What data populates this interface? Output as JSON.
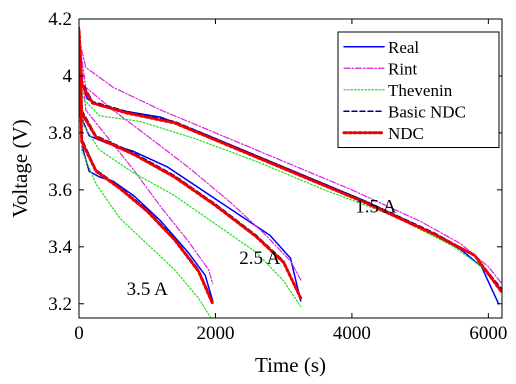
{
  "chart_data": {
    "type": "line",
    "title": "",
    "xlabel": "Time (s)",
    "ylabel": "Voltage (V)",
    "xlim": [
      0,
      6200
    ],
    "ylim": [
      3.15,
      4.2
    ],
    "xticks": [
      0,
      2000,
      4000,
      6000
    ],
    "xtick_labels": [
      "0",
      "2000",
      "4000",
      "6000"
    ],
    "yticks": [
      3.2,
      3.4,
      3.6,
      3.8,
      4.0,
      4.2
    ],
    "ytick_labels": [
      "3.2",
      "3.4",
      "3.6",
      "3.8",
      "4",
      "4.2"
    ],
    "grid": false,
    "legend_position": "top-right",
    "annotations": [
      {
        "text": "1.5 A",
        "x": 4350,
        "y": 3.52
      },
      {
        "text": "2.5 A",
        "x": 2650,
        "y": 3.34
      },
      {
        "text": "3.5 A",
        "x": 1000,
        "y": 3.23
      }
    ],
    "series": [
      {
        "name": "Real",
        "color": "#0000ff",
        "dash": "solid",
        "groups": [
          {
            "current": "1.5 A",
            "points": [
              [
                0,
                4.17
              ],
              [
                20,
                4.02
              ],
              [
                60,
                3.96
              ],
              [
                120,
                3.92
              ],
              [
                300,
                3.895
              ],
              [
                700,
                3.875
              ],
              [
                1200,
                3.855
              ],
              [
                1800,
                3.8
              ],
              [
                2600,
                3.72
              ],
              [
                3400,
                3.64
              ],
              [
                4200,
                3.56
              ],
              [
                5000,
                3.47
              ],
              [
                5600,
                3.39
              ],
              [
                5900,
                3.33
              ],
              [
                6150,
                3.2
              ]
            ]
          },
          {
            "current": "2.5 A",
            "points": [
              [
                0,
                4.17
              ],
              [
                20,
                3.93
              ],
              [
                60,
                3.84
              ],
              [
                150,
                3.79
              ],
              [
                400,
                3.765
              ],
              [
                800,
                3.735
              ],
              [
                1300,
                3.68
              ],
              [
                1800,
                3.6
              ],
              [
                2300,
                3.52
              ],
              [
                2800,
                3.44
              ],
              [
                3100,
                3.36
              ],
              [
                3250,
                3.21
              ]
            ]
          },
          {
            "current": "3.5 A",
            "points": [
              [
                0,
                4.17
              ],
              [
                20,
                3.86
              ],
              [
                60,
                3.74
              ],
              [
                150,
                3.665
              ],
              [
                300,
                3.645
              ],
              [
                500,
                3.63
              ],
              [
                800,
                3.58
              ],
              [
                1200,
                3.49
              ],
              [
                1600,
                3.38
              ],
              [
                1850,
                3.3
              ],
              [
                1960,
                3.21
              ]
            ]
          }
        ]
      },
      {
        "name": "Rint",
        "color": "#dd22dd",
        "dash": "dashdot",
        "groups": [
          {
            "current": "1.5 A",
            "points": [
              [
                0,
                4.13
              ],
              [
                100,
                4.03
              ],
              [
                500,
                3.96
              ],
              [
                1200,
                3.88
              ],
              [
                2000,
                3.8
              ],
              [
                3000,
                3.7
              ],
              [
                4000,
                3.6
              ],
              [
                5000,
                3.49
              ],
              [
                5600,
                3.41
              ],
              [
                6000,
                3.33
              ],
              [
                6200,
                3.27
              ]
            ]
          },
          {
            "current": "2.5 A",
            "points": [
              [
                0,
                4.13
              ],
              [
                100,
                3.96
              ],
              [
                500,
                3.88
              ],
              [
                1000,
                3.79
              ],
              [
                1600,
                3.68
              ],
              [
                2200,
                3.56
              ],
              [
                2700,
                3.45
              ],
              [
                3100,
                3.35
              ],
              [
                3260,
                3.28
              ]
            ]
          },
          {
            "current": "3.5 A",
            "points": [
              [
                0,
                4.13
              ],
              [
                100,
                3.88
              ],
              [
                400,
                3.79
              ],
              [
                800,
                3.67
              ],
              [
                1200,
                3.54
              ],
              [
                1600,
                3.42
              ],
              [
                1900,
                3.32
              ],
              [
                1960,
                3.27
              ]
            ]
          }
        ]
      },
      {
        "name": "Thevenin",
        "color": "#22dd22",
        "dash": "dotted",
        "groups": [
          {
            "current": "1.5 A",
            "points": [
              [
                0,
                4.16
              ],
              [
                60,
                3.92
              ],
              [
                300,
                3.86
              ],
              [
                900,
                3.84
              ],
              [
                1700,
                3.78
              ],
              [
                2600,
                3.7
              ],
              [
                3600,
                3.6
              ],
              [
                4600,
                3.51
              ],
              [
                5500,
                3.4
              ],
              [
                5900,
                3.33
              ],
              [
                6200,
                3.24
              ]
            ]
          },
          {
            "current": "2.5 A",
            "points": [
              [
                0,
                4.16
              ],
              [
                60,
                3.83
              ],
              [
                300,
                3.74
              ],
              [
                800,
                3.66
              ],
              [
                1400,
                3.58
              ],
              [
                2000,
                3.48
              ],
              [
                2600,
                3.38
              ],
              [
                3000,
                3.28
              ],
              [
                3250,
                3.19
              ]
            ]
          },
          {
            "current": "3.5 A",
            "points": [
              [
                0,
                4.16
              ],
              [
                40,
                3.74
              ],
              [
                250,
                3.62
              ],
              [
                600,
                3.5
              ],
              [
                1000,
                3.41
              ],
              [
                1400,
                3.32
              ],
              [
                1750,
                3.22
              ],
              [
                1960,
                3.14
              ]
            ]
          }
        ]
      },
      {
        "name": "Basic NDC",
        "color": "#000080",
        "dash": "dashed",
        "groups": [
          {
            "current": "1.5 A",
            "points": [
              [
                0,
                4.16
              ],
              [
                40,
                3.98
              ],
              [
                200,
                3.91
              ],
              [
                700,
                3.875
              ],
              [
                1400,
                3.84
              ],
              [
                2200,
                3.76
              ],
              [
                3200,
                3.66
              ],
              [
                4200,
                3.56
              ],
              [
                5200,
                3.45
              ],
              [
                5800,
                3.37
              ],
              [
                6200,
                3.25
              ]
            ]
          },
          {
            "current": "2.5 A",
            "points": [
              [
                0,
                4.16
              ],
              [
                40,
                3.88
              ],
              [
                250,
                3.79
              ],
              [
                800,
                3.73
              ],
              [
                1400,
                3.65
              ],
              [
                2000,
                3.55
              ],
              [
                2600,
                3.44
              ],
              [
                3000,
                3.35
              ],
              [
                3250,
                3.22
              ]
            ]
          },
          {
            "current": "3.5 A",
            "points": [
              [
                0,
                4.16
              ],
              [
                40,
                3.78
              ],
              [
                250,
                3.67
              ],
              [
                600,
                3.61
              ],
              [
                1000,
                3.53
              ],
              [
                1400,
                3.43
              ],
              [
                1750,
                3.32
              ],
              [
                1960,
                3.21
              ]
            ]
          }
        ]
      },
      {
        "name": "NDC",
        "color": "#ee0000",
        "dash": "dotted-thick",
        "groups": [
          {
            "current": "1.5 A",
            "points": [
              [
                0,
                4.16
              ],
              [
                40,
                3.97
              ],
              [
                200,
                3.905
              ],
              [
                700,
                3.87
              ],
              [
                1400,
                3.835
              ],
              [
                2200,
                3.755
              ],
              [
                3200,
                3.655
              ],
              [
                4200,
                3.555
              ],
              [
                5200,
                3.445
              ],
              [
                5800,
                3.37
              ],
              [
                6200,
                3.24
              ]
            ]
          },
          {
            "current": "2.5 A",
            "points": [
              [
                0,
                4.16
              ],
              [
                40,
                3.87
              ],
              [
                250,
                3.785
              ],
              [
                800,
                3.725
              ],
              [
                1400,
                3.645
              ],
              [
                2000,
                3.545
              ],
              [
                2600,
                3.435
              ],
              [
                3000,
                3.345
              ],
              [
                3250,
                3.22
              ]
            ]
          },
          {
            "current": "3.5 A",
            "points": [
              [
                0,
                4.16
              ],
              [
                40,
                3.77
              ],
              [
                250,
                3.665
              ],
              [
                600,
                3.605
              ],
              [
                1000,
                3.525
              ],
              [
                1400,
                3.425
              ],
              [
                1750,
                3.315
              ],
              [
                1960,
                3.2
              ]
            ]
          }
        ]
      }
    ]
  }
}
